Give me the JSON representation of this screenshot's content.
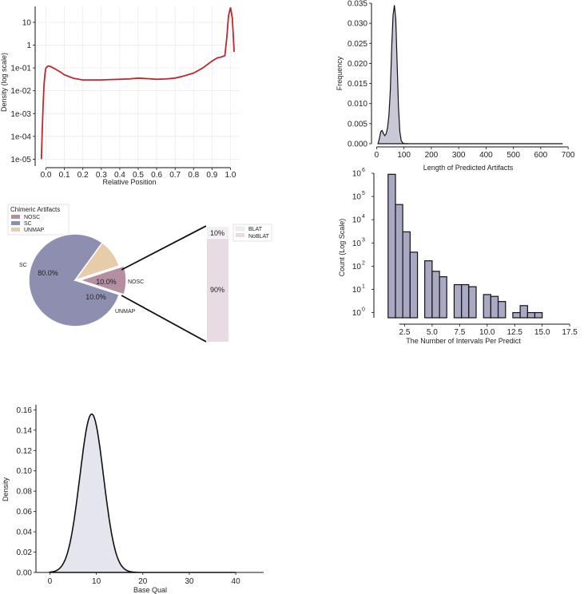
{
  "chart_data": [
    {
      "id": "density-relative-position",
      "type": "line",
      "xlabel": "Relative Position",
      "ylabel": "Density (log scale)",
      "xlim": [
        -0.05,
        1.05
      ],
      "ylim": [
        5e-06,
        50
      ],
      "yscale": "log",
      "grid": true,
      "xticks": [
        {
          "v": 0.0,
          "t": "0.0"
        },
        {
          "v": 0.1,
          "t": "0.1"
        },
        {
          "v": 0.2,
          "t": "0.2"
        },
        {
          "v": 0.3,
          "t": "0.3"
        },
        {
          "v": 0.4,
          "t": "0.4"
        },
        {
          "v": 0.5,
          "t": "0.5"
        },
        {
          "v": 0.6,
          "t": "0.6"
        },
        {
          "v": 0.7,
          "t": "0.7"
        },
        {
          "v": 0.8,
          "t": "0.8"
        },
        {
          "v": 0.9,
          "t": "0.9"
        },
        {
          "v": 1.0,
          "t": "1.0"
        }
      ],
      "yticks": [
        {
          "v": 10,
          "t": "10"
        },
        {
          "v": 1,
          "t": "1"
        },
        {
          "v": 0.1,
          "t": "1e-01"
        },
        {
          "v": 0.01,
          "t": "1e-02"
        },
        {
          "v": 0.001,
          "t": "1e-03"
        },
        {
          "v": 0.0001,
          "t": "1e-04"
        },
        {
          "v": 1e-05,
          "t": "1e-05"
        }
      ],
      "color": "#c0272d",
      "x": [
        -0.025,
        -0.02,
        -0.015,
        -0.01,
        -0.005,
        0.0,
        0.01,
        0.02,
        0.03,
        0.05,
        0.08,
        0.1,
        0.15,
        0.2,
        0.25,
        0.3,
        0.35,
        0.4,
        0.45,
        0.5,
        0.55,
        0.6,
        0.65,
        0.7,
        0.75,
        0.8,
        0.85,
        0.9,
        0.93,
        0.95,
        0.97,
        0.98,
        0.99,
        1.0,
        1.01,
        1.02
      ],
      "y": [
        1e-05,
        0.0002,
        0.003,
        0.02,
        0.06,
        0.1,
        0.12,
        0.12,
        0.11,
        0.09,
        0.065,
        0.05,
        0.035,
        0.03,
        0.03,
        0.03,
        0.031,
        0.032,
        0.033,
        0.036,
        0.034,
        0.032,
        0.033,
        0.036,
        0.045,
        0.06,
        0.1,
        0.2,
        0.28,
        0.3,
        0.35,
        2,
        20,
        45,
        15,
        0.5
      ]
    },
    {
      "id": "length-predicted-artifacts",
      "type": "area",
      "xlabel": "Length of Predicted Artifacts",
      "ylabel": "Frequency",
      "xlim": [
        -10,
        720
      ],
      "ylim": [
        0,
        0.035
      ],
      "xticks": [
        0,
        100,
        200,
        300,
        400,
        500,
        600,
        700
      ],
      "yticks": [
        {
          "v": 0,
          "t": "0.000"
        },
        {
          "v": 0.005,
          "t": "0.005"
        },
        {
          "v": 0.01,
          "t": "0.010"
        },
        {
          "v": 0.015,
          "t": "0.015"
        },
        {
          "v": 0.02,
          "t": "0.020"
        },
        {
          "v": 0.025,
          "t": "0.025"
        },
        {
          "v": 0.03,
          "t": "0.030"
        },
        {
          "v": 0.035,
          "t": "0.035"
        }
      ],
      "fill": "#c9c8d6",
      "x": [
        5,
        10,
        15,
        20,
        25,
        30,
        35,
        40,
        45,
        50,
        55,
        60,
        65,
        70,
        75,
        80,
        85,
        90,
        95,
        100,
        120,
        150,
        200,
        300,
        400,
        500,
        600,
        680
      ],
      "y": [
        0,
        0.0012,
        0.003,
        0.0033,
        0.0025,
        0.002,
        0.0025,
        0.004,
        0.007,
        0.013,
        0.024,
        0.032,
        0.0345,
        0.031,
        0.02,
        0.009,
        0.003,
        0.0008,
        0.0002,
        5e-05,
        0,
        0,
        0,
        0,
        0,
        0,
        0,
        0
      ]
    },
    {
      "id": "chimeric-artifacts-pie",
      "type": "pie",
      "legend_title": "Chimeric Artifacts",
      "legend": [
        "NOSC",
        "SC",
        "UNMAP"
      ],
      "labels": [
        "NOSC",
        "SC",
        "UNMAP"
      ],
      "values": [
        10.0,
        80.0,
        10.0
      ],
      "pct_labels": [
        "10.0%",
        "80.0%",
        "10.0%"
      ],
      "colors": [
        "#b48ea1",
        "#8e8fb0",
        "#e7ccaa"
      ],
      "explode_slice": "NOSC",
      "breakdown": {
        "legend": [
          "BLAT",
          "NoBLAT"
        ],
        "values": [
          10,
          90
        ],
        "pct_labels": [
          "10%",
          "90%"
        ],
        "colors": [
          "#f3eef2",
          "#e8dbe4"
        ]
      }
    },
    {
      "id": "intervals-per-predict",
      "type": "bar",
      "xlabel": "The Number of Intervals Per Predict",
      "ylabel": "Count (Log Scale)",
      "yscale": "log",
      "xlim": [
        0,
        18
      ],
      "ylim": [
        0.6,
        1000000
      ],
      "xticks": [
        {
          "v": 2.5,
          "t": "2.5"
        },
        {
          "v": 5.0,
          "t": "5.0"
        },
        {
          "v": 7.5,
          "t": "7.5"
        },
        {
          "v": 10.0,
          "t": "10.0"
        },
        {
          "v": 12.5,
          "t": "12.5"
        },
        {
          "v": 15.0,
          "t": "15.0"
        },
        {
          "v": 17.5,
          "t": "17.5"
        }
      ],
      "yticks": [
        {
          "v": 1,
          "t": "10",
          "e": "0"
        },
        {
          "v": 10,
          "t": "10",
          "e": "1"
        },
        {
          "v": 100,
          "t": "10",
          "e": "2"
        },
        {
          "v": 1000,
          "t": "10",
          "e": "3"
        },
        {
          "v": 10000,
          "t": "10",
          "e": "4"
        },
        {
          "v": 100000,
          "t": "10",
          "e": "5"
        },
        {
          "v": 1000000,
          "t": "10",
          "e": "6"
        }
      ],
      "fill": "#a9a9c4",
      "bins": [
        [
          1.0,
          1.67
        ],
        [
          1.67,
          2.33
        ],
        [
          2.33,
          3.0
        ],
        [
          3.0,
          3.67
        ],
        [
          4.33,
          5.0
        ],
        [
          5.0,
          5.67
        ],
        [
          5.67,
          6.33
        ],
        [
          7.0,
          7.67
        ],
        [
          7.67,
          8.33
        ],
        [
          8.33,
          9.0
        ],
        [
          9.67,
          10.33
        ],
        [
          10.33,
          11.0
        ],
        [
          11.0,
          11.67
        ],
        [
          12.33,
          13.0
        ],
        [
          13.0,
          13.67
        ],
        [
          13.67,
          14.33
        ],
        [
          14.33,
          15.0
        ],
        [
          15.0,
          15.67
        ],
        [
          15.67,
          16.33
        ]
      ],
      "values": [
        900000,
        45000,
        3000,
        400,
        170,
        60,
        35,
        16,
        16,
        13,
        6,
        5,
        3,
        1,
        2,
        1,
        1,
        0,
        0
      ]
    },
    {
      "id": "base-qual-density",
      "type": "area",
      "xlabel": "Base Qual",
      "ylabel": "Density",
      "xlim": [
        -3,
        46
      ],
      "ylim": [
        0,
        0.165
      ],
      "xticks": [
        0,
        10,
        20,
        30,
        40
      ],
      "yticks": [
        {
          "v": 0,
          "t": "0.00"
        },
        {
          "v": 0.02,
          "t": "0.02"
        },
        {
          "v": 0.04,
          "t": "0.04"
        },
        {
          "v": 0.06,
          "t": "0.06"
        },
        {
          "v": 0.08,
          "t": "0.08"
        },
        {
          "v": 0.1,
          "t": "0.10"
        },
        {
          "v": 0.12,
          "t": "0.12"
        },
        {
          "v": 0.14,
          "t": "0.14"
        },
        {
          "v": 0.16,
          "t": "0.16"
        }
      ],
      "fill": "#e5e5ee",
      "mean": 9.0,
      "sd": 2.55,
      "peak": 0.156,
      "x_range": [
        0,
        40
      ]
    }
  ]
}
